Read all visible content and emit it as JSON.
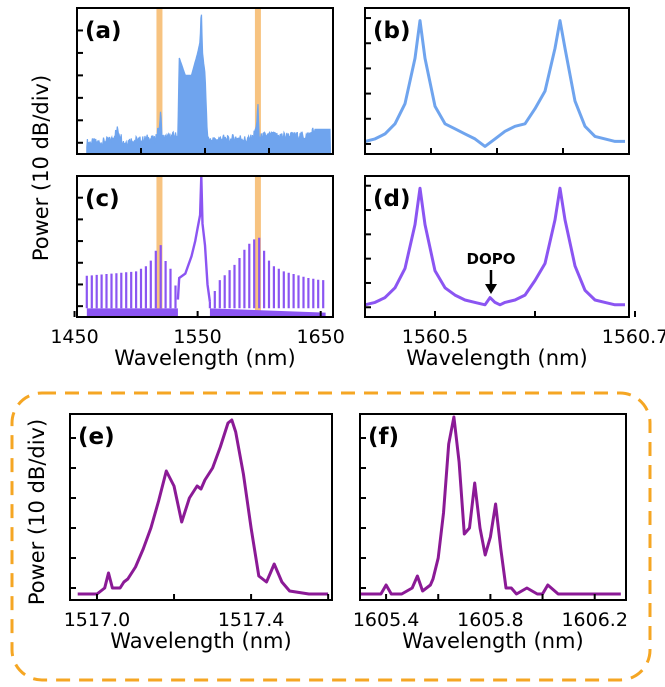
{
  "chart_data": [
    {
      "id": "a",
      "type": "line",
      "panel_label": "(a)",
      "color": "#6fa4ee",
      "highlight_color": "#f6b96a",
      "x": [
        1460,
        1470,
        1480,
        1485,
        1490,
        1495,
        1500,
        1505,
        1510,
        1515,
        1519,
        1520,
        1521,
        1525,
        1530,
        1534,
        1535,
        1540,
        1545,
        1548,
        1550,
        1552,
        1553,
        1554,
        1555,
        1556,
        1558,
        1560,
        1565,
        1570,
        1575,
        1580,
        1585,
        1590,
        1595,
        1598,
        1599,
        1600,
        1605,
        1610,
        1620,
        1630,
        1640,
        1645,
        1650
      ],
      "y": [
        -50,
        -50,
        -49,
        -44,
        -50,
        -49,
        -49,
        -49,
        -48,
        -49,
        -43,
        -35,
        -48,
        -48,
        -47,
        -47,
        -12,
        -20,
        -20,
        -14,
        -10,
        -5,
        10,
        -10,
        -15,
        -19,
        -48,
        -49,
        -49,
        -48,
        -49,
        -48,
        -48,
        -49,
        -48,
        -42,
        -32,
        -48,
        -47,
        -47,
        -47,
        -47,
        -47,
        -44,
        -44
      ],
      "highlights": [
        1519,
        1599
      ],
      "xlim": [
        1452,
        1660
      ],
      "ylim": [
        -55,
        10
      ]
    },
    {
      "id": "b",
      "type": "line",
      "panel_label": "(b)",
      "color": "#6fa4ee",
      "x": [
        1560.43,
        1560.44,
        1560.45,
        1560.46,
        1560.47,
        1560.48,
        1560.485,
        1560.49,
        1560.5,
        1560.51,
        1560.52,
        1560.53,
        1560.54,
        1560.55,
        1560.56,
        1560.57,
        1560.58,
        1560.59,
        1560.6,
        1560.61,
        1560.62,
        1560.625,
        1560.63,
        1560.64,
        1560.65,
        1560.66,
        1560.67,
        1560.68,
        1560.69
      ],
      "y": [
        -59,
        -58,
        -56,
        -52,
        -44,
        -26,
        -11,
        -26,
        -45,
        -52,
        -54,
        -56,
        -58,
        -61,
        -58,
        -55,
        -53,
        -52,
        -46,
        -39,
        -22,
        -11,
        -22,
        -43,
        -53,
        -57,
        -58,
        -59,
        -59
      ],
      "xlim": [
        1560.43,
        1560.694
      ],
      "ylim": [
        -64,
        -6
      ]
    },
    {
      "id": "c",
      "type": "line",
      "panel_label": "(c)",
      "color": "#8b55f2",
      "highlight_color": "#f6b96a",
      "comb_spacing_nm": 4,
      "x": [
        1460,
        1480,
        1500,
        1510,
        1515,
        1519,
        1525,
        1530,
        1534,
        1535,
        1540,
        1545,
        1548,
        1550,
        1552,
        1553,
        1554,
        1556,
        1558,
        1560,
        1568,
        1575,
        1580,
        1585,
        1590,
        1595,
        1599,
        1605,
        1610,
        1620,
        1640,
        1650
      ],
      "y": [
        -36,
        -35,
        -34,
        -31,
        -26,
        -20,
        -31,
        -34,
        -47,
        -37,
        -35,
        -27,
        -20,
        -14,
        -8,
        10,
        -12,
        -22,
        -40,
        -48,
        -38,
        -34,
        -31,
        -27,
        -22,
        -20,
        -17,
        -26,
        -31,
        -34,
        -37,
        -38
      ],
      "floor": -51,
      "gap": [
        1534,
        1560
      ],
      "highlights": [
        1519,
        1599
      ],
      "xlim": [
        1452,
        1660
      ],
      "ylim": [
        -55,
        10
      ],
      "xticks": [
        1450,
        1550,
        1650
      ],
      "xtick_labels": [
        "1450",
        "1550",
        "1650"
      ],
      "xlabel": "Wavelength (nm)"
    },
    {
      "id": "d",
      "type": "line",
      "panel_label": "(d)",
      "color": "#8b55f2",
      "x": [
        1560.43,
        1560.44,
        1560.45,
        1560.46,
        1560.47,
        1560.48,
        1560.485,
        1560.49,
        1560.5,
        1560.51,
        1560.52,
        1560.53,
        1560.54,
        1560.55,
        1560.555,
        1560.56,
        1560.565,
        1560.57,
        1560.58,
        1560.59,
        1560.6,
        1560.61,
        1560.62,
        1560.625,
        1560.63,
        1560.64,
        1560.65,
        1560.66,
        1560.67,
        1560.68,
        1560.69
      ],
      "y": [
        -59,
        -58,
        -56,
        -52,
        -44,
        -26,
        -11,
        -26,
        -45,
        -52,
        -55,
        -57,
        -58,
        -59,
        -56,
        -58,
        -59,
        -58,
        -57,
        -55,
        -49,
        -42,
        -24,
        -11,
        -24,
        -43,
        -53,
        -57,
        -58,
        -59,
        -59
      ],
      "xlim": [
        1560.43,
        1560.694
      ],
      "ylim": [
        -64,
        -6
      ],
      "xticks": [
        1560.5,
        1560.6,
        1560.7
      ],
      "xtick_labels": [
        "1560.5",
        "",
        "1560.7"
      ],
      "xlabel": "Wavelength (nm)",
      "annotation": {
        "text": "DOPO",
        "x": 1560.556
      }
    },
    {
      "id": "e",
      "type": "line",
      "panel_label": "(e)",
      "color": "#8b1a96",
      "x": [
        1516.95,
        1517.0,
        1517.02,
        1517.03,
        1517.04,
        1517.06,
        1517.07,
        1517.08,
        1517.1,
        1517.12,
        1517.14,
        1517.16,
        1517.18,
        1517.2,
        1517.22,
        1517.24,
        1517.26,
        1517.27,
        1517.28,
        1517.3,
        1517.32,
        1517.34,
        1517.35,
        1517.36,
        1517.38,
        1517.4,
        1517.42,
        1517.44,
        1517.45,
        1517.46,
        1517.48,
        1517.5,
        1517.55,
        1517.6
      ],
      "y": [
        -62,
        -62,
        -60,
        -55,
        -60,
        -60,
        -58,
        -57,
        -53,
        -47,
        -40,
        -31,
        -21,
        -26,
        -38,
        -30,
        -26,
        -27,
        -24,
        -20,
        -13,
        -5,
        -4,
        -8,
        -22,
        -40,
        -56,
        -58,
        -55,
        -52,
        -58,
        -61,
        -62,
        -62
      ],
      "xlim": [
        1516.93,
        1517.61
      ],
      "ylim": [
        -64,
        -2
      ],
      "xticks": [
        1517.0,
        1517.2,
        1517.4,
        1517.6
      ],
      "xtick_labels": [
        "1517.0",
        "",
        "1517.4",
        ""
      ],
      "xlabel": "Wavelength (nm)"
    },
    {
      "id": "f",
      "type": "line",
      "panel_label": "(f)",
      "color": "#8b1a96",
      "x": [
        1605.3,
        1605.38,
        1605.4,
        1605.42,
        1605.46,
        1605.5,
        1605.52,
        1605.54,
        1605.57,
        1605.58,
        1605.6,
        1605.62,
        1605.64,
        1605.66,
        1605.68,
        1605.7,
        1605.72,
        1605.74,
        1605.76,
        1605.78,
        1605.8,
        1605.82,
        1605.84,
        1605.86,
        1605.88,
        1605.9,
        1605.94,
        1605.98,
        1606.0,
        1606.02,
        1606.06,
        1606.1,
        1606.2,
        1606.3
      ],
      "y": [
        -62,
        -62,
        -59,
        -62,
        -62,
        -60,
        -56,
        -61,
        -59,
        -57,
        -50,
        -35,
        -12,
        -3,
        -18,
        -42,
        -40,
        -25,
        -40,
        -49,
        -43,
        -32,
        -47,
        -60,
        -60,
        -62,
        -60,
        -62,
        -62,
        -59,
        -62,
        -62,
        -62,
        -62
      ],
      "xlim": [
        1605.3,
        1606.32
      ],
      "ylim": [
        -64,
        -2
      ],
      "xticks": [
        1605.4,
        1605.6,
        1605.8,
        1606.0,
        1606.2
      ],
      "xtick_labels": [
        "1605.4",
        "",
        "1605.8",
        "",
        "1606.2"
      ],
      "xlabel": "Wavelength (nm)"
    }
  ],
  "ylabel": "Power (10 dB/div)",
  "colors": {
    "frame": "#f5a623",
    "axis": "#000000"
  }
}
